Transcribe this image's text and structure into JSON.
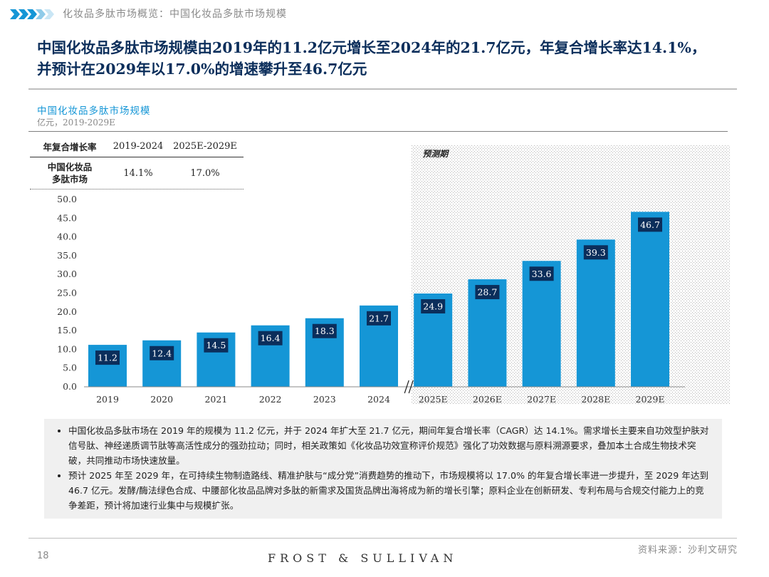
{
  "header": {
    "breadcrumb": "化妆品多肽市场概览：中国化妆品多肽市场规模",
    "headline_line1": "中国化妆品多肽市场规模由2019年的11.2亿元增长至2024年的21.7亿元，年复合增长率达14.1%，",
    "headline_line2": "并预计在2029年以17.0%的增速攀升至46.7亿元"
  },
  "colors": {
    "bar": "#1596d6",
    "label_box": "#0b2e5b",
    "title": "#0b2e5b",
    "accent": "#1596d6"
  },
  "cagr_table": {
    "header": [
      "年复合增长率",
      "2019-2024",
      "2025E-2029E"
    ],
    "row_label_line1": "中国化妆品",
    "row_label_line2": "多肽市场",
    "values": [
      "14.1%",
      "17.0%"
    ]
  },
  "chart_data": {
    "type": "bar",
    "title": "中国化妆品多肽市场规模",
    "subtitle": "亿元，2019-2029E",
    "categories": [
      "2019",
      "2020",
      "2021",
      "2022",
      "2023",
      "2024",
      "2025E",
      "2026E",
      "2027E",
      "2028E",
      "2029E"
    ],
    "values": [
      11.2,
      12.4,
      14.5,
      16.4,
      18.3,
      21.7,
      24.9,
      28.7,
      33.6,
      39.3,
      46.7
    ],
    "value_labels": [
      "11.2",
      "12.4",
      "14.5",
      "16.4",
      "18.3",
      "21.7",
      "24.9",
      "28.7",
      "33.6",
      "39.3",
      "46.7"
    ],
    "ylim": [
      0,
      50
    ],
    "yticks": [
      "0.0",
      "5.0",
      "10.0",
      "15.0",
      "20.0",
      "25.0",
      "30.0",
      "35.0",
      "40.0",
      "45.0",
      "50.0"
    ],
    "forecast_label": "预测期",
    "forecast_start_index": 6,
    "grid": false
  },
  "notes": [
    "中国化妆品多肽市场在 2019 年的规模为 11.2 亿元，并于 2024 年扩大至 21.7 亿元，期间年复合增长率（CAGR）达 14.1%。需求增长主要来自功效型护肤对信号肽、神经递质调节肽等高活性成分的强劲拉动；同时，相关政策如《化妆品功效宣称评价规范》强化了功效数据与原料溯源要求，叠加本土合成生物技术突破，共同推动市场快速放量。",
    "预计 2025 年至 2029 年，在可持续生物制造路线、精准护肤与“成分党”消费趋势的推动下，市场规模将以 17.0% 的年复合增长率进一步提升，至 2029 年达到 46.7 亿元。发酵/酶法绿色合成、中腰部化妆品品牌对多肽的新需求及国货品牌出海将成为新的增长引擎；原料企业在创新研发、专利布局与合规交付能力上的竞争差距，预计将加速行业集中与规模扩张。"
  ],
  "footer": {
    "source": "资料来源：沙利文研究",
    "page_number": "18",
    "logo_text": "FROST & SULLIVAN"
  }
}
